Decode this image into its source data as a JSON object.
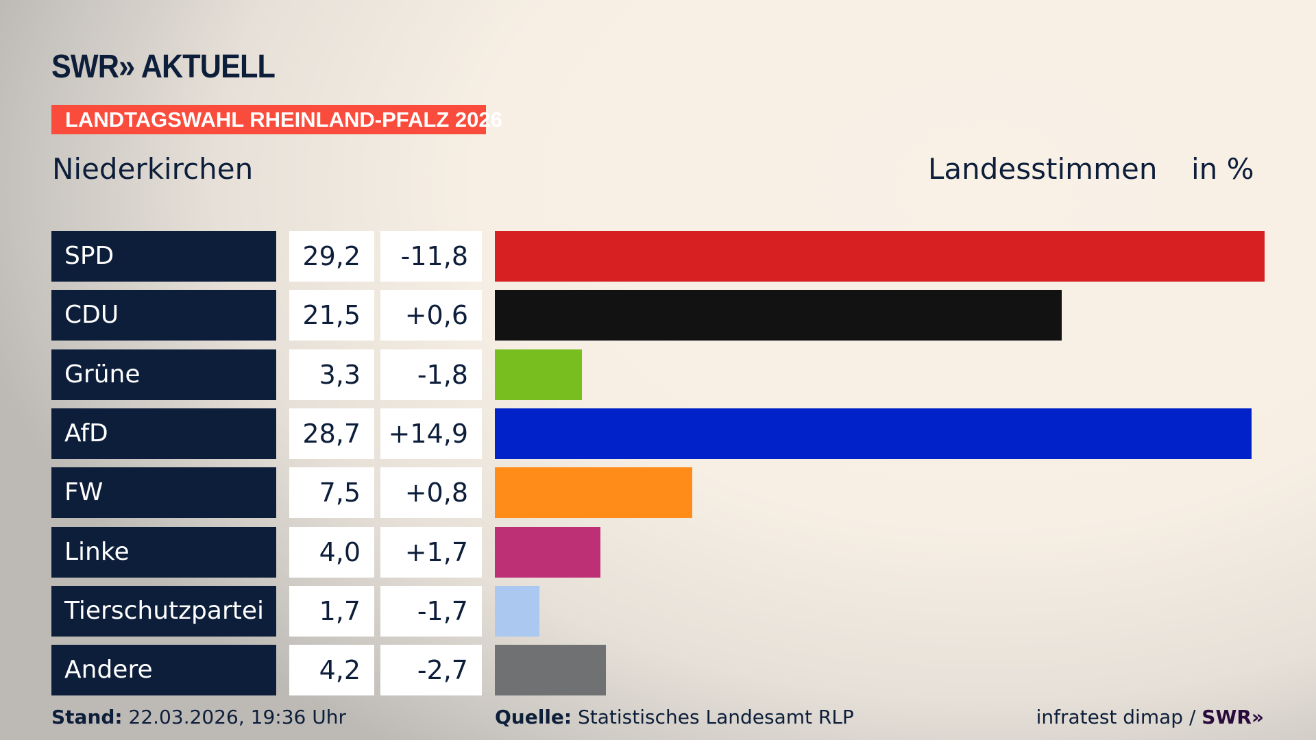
{
  "brand": {
    "logo": "SWR» AKTUELL"
  },
  "banner": "LANDTAGSWAHL RHEINLAND-PFALZ 2026",
  "header": {
    "location": "Niederkirchen",
    "vote_type": "Landesstimmen",
    "unit": "in %"
  },
  "chart_data": {
    "type": "bar",
    "orientation": "horizontal",
    "categories": [
      "SPD",
      "CDU",
      "Grüne",
      "AfD",
      "FW",
      "Linke",
      "Tierschutzpartei",
      "Andere"
    ],
    "values": [
      29.2,
      21.5,
      3.3,
      28.7,
      7.5,
      4.0,
      1.7,
      4.2
    ],
    "value_labels": [
      "29,2",
      "21,5",
      "3,3",
      "28,7",
      "7,5",
      "4,0",
      "1,7",
      "4,2"
    ],
    "changes": [
      -11.8,
      0.6,
      -1.8,
      14.9,
      0.8,
      1.7,
      -1.7,
      -2.7
    ],
    "change_labels": [
      "-11,8",
      "+0,6",
      "-1,8",
      "+14,9",
      "+0,8",
      "+1,7",
      "-1,7",
      "-2,7"
    ],
    "colors": [
      "#d72021",
      "#121212",
      "#78be1e",
      "#0022c8",
      "#ff8c19",
      "#bd3075",
      "#aac8f0",
      "#707173"
    ],
    "xlim": [
      0,
      29.2
    ],
    "grid": false
  },
  "footer": {
    "stand_label": "Stand:",
    "stand_value": "22.03.2026, 19:36 Uhr",
    "source_label": "Quelle:",
    "source_value": "Statistisches Landesamt RLP",
    "credit": "infratest dimap /",
    "credit_logo": "SWR»"
  }
}
